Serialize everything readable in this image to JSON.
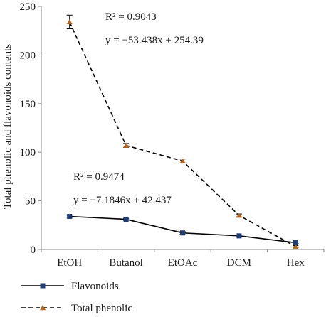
{
  "chart_data": {
    "type": "line",
    "ylabel": "Total phenolic and flavonoids contents",
    "xlabel": "",
    "categories": [
      "EtOH",
      "Butanol",
      "EtOAc",
      "DCM",
      "Hex"
    ],
    "ylim": [
      0,
      250
    ],
    "yticks": [
      0,
      50,
      100,
      150,
      200,
      250
    ],
    "grid": false,
    "legend_position": "bottom-left",
    "series": [
      {
        "name": "Total phenolic",
        "values": [
          234,
          107,
          91,
          35,
          3
        ],
        "errors": [
          7,
          2,
          2,
          1.5,
          1
        ],
        "color": "#000000",
        "marker_color": "#b5651d",
        "line_style": "dashed",
        "marker": "triangle",
        "annotation_r2": "R² = 0.9043",
        "annotation_eq": "y = −53.438x + 254.39"
      },
      {
        "name": "Flavonoids",
        "values": [
          34,
          31,
          17,
          14,
          7
        ],
        "errors": [
          1.2,
          1,
          1.5,
          1,
          0.8
        ],
        "color": "#000000",
        "marker_color": "#1f3c74",
        "line_style": "solid",
        "marker": "square",
        "annotation_r2": "R² = 0.9474",
        "annotation_eq": "y = −7.1846x + 42.437"
      }
    ]
  }
}
